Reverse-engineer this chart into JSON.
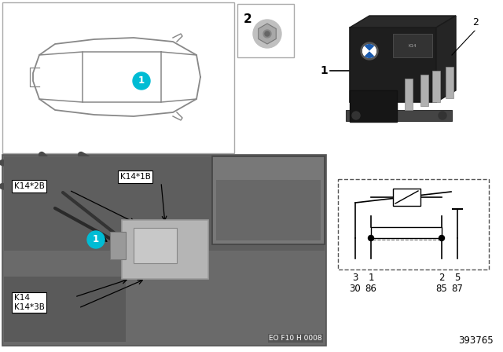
{
  "bg_color": "#ffffff",
  "figure_size": [
    6.4,
    4.48
  ],
  "dpi": 100,
  "car_outline_color": "#888888",
  "cyan_color": "#00bcd4",
  "car_circle_text": "1",
  "top_box_label": "2",
  "bottom_photo_label": "EO F10 H 0008",
  "relay_label1": "1",
  "relay_label2": "2",
  "circuit_pins_top": [
    "3",
    "1",
    "2",
    "5"
  ],
  "circuit_pins_bottom": [
    "30",
    "86",
    "85",
    "87"
  ],
  "label_k14_2b": "K14*2B",
  "label_k14_1b": "K14*1B",
  "label_k14": "K14\nK14*3B",
  "label_circle1": "1",
  "part_number": "393765",
  "panel_border": "#999999",
  "photo_bg": "#808080",
  "inset_bg": "#909090"
}
